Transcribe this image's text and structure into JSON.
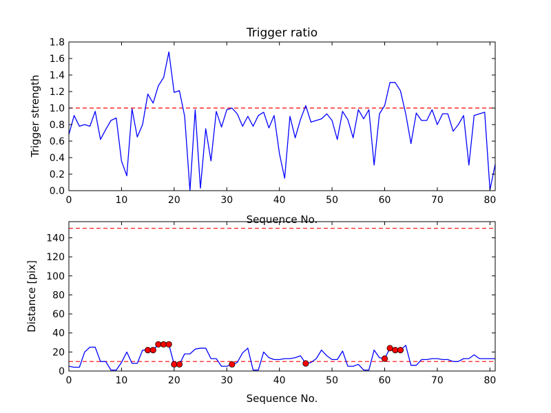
{
  "chart_data": [
    {
      "type": "line",
      "title": "Trigger ratio",
      "xlabel": "Sequence No.",
      "ylabel": "Trigger strength",
      "xlim": [
        0,
        81
      ],
      "ylim": [
        0,
        1.8
      ],
      "xticks": [
        0,
        10,
        20,
        30,
        40,
        50,
        60,
        70,
        80
      ],
      "yticks": [
        "0.0",
        "0.2",
        "0.4",
        "0.6",
        "0.8",
        "1.0",
        "1.2",
        "1.4",
        "1.6",
        "1.8"
      ],
      "grid": false,
      "series": [
        {
          "name": "trigger strength",
          "color": "#0000ff",
          "x": [
            0,
            1,
            2,
            3,
            4,
            5,
            6,
            7,
            8,
            9,
            10,
            11,
            12,
            13,
            14,
            15,
            16,
            17,
            18,
            19,
            20,
            21,
            22,
            23,
            24,
            25,
            26,
            27,
            28,
            29,
            30,
            31,
            32,
            33,
            34,
            35,
            36,
            37,
            38,
            39,
            40,
            41,
            42,
            43,
            44,
            45,
            46,
            47,
            48,
            49,
            50,
            51,
            52,
            53,
            54,
            55,
            56,
            57,
            58,
            59,
            60,
            61,
            62,
            63,
            64,
            65,
            66,
            67,
            68,
            69,
            70,
            71,
            72,
            73,
            74,
            75,
            76,
            77,
            78,
            79,
            80,
            81
          ],
          "values": [
            0.68,
            0.91,
            0.78,
            0.8,
            0.78,
            0.96,
            0.62,
            0.74,
            0.85,
            0.88,
            0.36,
            0.18,
            0.99,
            0.65,
            0.8,
            1.17,
            1.06,
            1.27,
            1.37,
            1.68,
            1.19,
            1.21,
            0.9,
            0.0,
            0.98,
            0.03,
            0.75,
            0.36,
            0.96,
            0.77,
            0.98,
            1.0,
            0.93,
            0.78,
            0.9,
            0.78,
            0.91,
            0.95,
            0.76,
            0.91,
            0.45,
            0.15,
            0.9,
            0.64,
            0.86,
            1.03,
            0.83,
            0.85,
            0.87,
            0.93,
            0.85,
            0.62,
            0.96,
            0.86,
            0.64,
            0.98,
            0.87,
            0.98,
            0.31,
            0.93,
            1.03,
            1.31,
            1.31,
            1.21,
            0.93,
            0.57,
            0.94,
            0.85,
            0.85,
            0.98,
            0.8,
            0.93,
            0.93,
            0.72,
            0.8,
            0.91,
            0.31,
            0.91,
            0.93,
            0.95,
            0.01,
            0.32
          ]
        }
      ],
      "threshold": {
        "value": 1.0,
        "color": "#ff0000",
        "style": "dashed"
      }
    },
    {
      "type": "line",
      "title": "",
      "xlabel": "Sequence No.",
      "ylabel": "Distance [pix]",
      "xlim": [
        0,
        81
      ],
      "ylim": [
        0,
        157
      ],
      "xticks": [
        0,
        10,
        20,
        30,
        40,
        50,
        60,
        70,
        80
      ],
      "yticks": [
        0,
        20,
        40,
        60,
        80,
        100,
        120,
        140
      ],
      "grid": false,
      "series": [
        {
          "name": "distance",
          "color": "#0000ff",
          "x": [
            0,
            1,
            2,
            3,
            4,
            5,
            6,
            7,
            8,
            9,
            10,
            11,
            12,
            13,
            14,
            15,
            16,
            17,
            18,
            19,
            20,
            21,
            22,
            23,
            24,
            25,
            26,
            27,
            28,
            29,
            30,
            31,
            32,
            33,
            34,
            35,
            36,
            37,
            38,
            39,
            40,
            41,
            42,
            43,
            44,
            45,
            46,
            47,
            48,
            49,
            50,
            51,
            52,
            53,
            54,
            55,
            56,
            57,
            58,
            59,
            60,
            61,
            62,
            63,
            64,
            65,
            66,
            67,
            68,
            69,
            70,
            71,
            72,
            73,
            74,
            75,
            76,
            77,
            78,
            79,
            80,
            81
          ],
          "values": [
            5,
            4,
            4,
            20,
            25,
            25,
            10,
            10,
            1,
            1,
            9,
            20,
            8,
            8,
            22,
            22,
            22,
            28,
            28,
            28,
            7,
            7,
            18,
            18,
            23,
            24,
            24,
            13,
            13,
            5,
            5,
            7,
            9,
            19,
            24,
            1,
            1,
            20,
            14,
            12,
            12,
            13,
            13,
            14,
            16,
            8,
            9,
            13,
            22,
            16,
            12,
            12,
            21,
            5,
            5,
            7,
            1,
            1,
            22,
            14,
            13,
            24,
            22,
            22,
            27,
            6,
            6,
            12,
            12,
            13,
            13,
            12,
            12,
            10,
            10,
            13,
            13,
            17,
            13,
            13,
            13,
            13
          ]
        },
        {
          "name": "flagged points",
          "color": "#ff0000",
          "marker": "circle",
          "x": [
            15,
            16,
            17,
            18,
            19,
            20,
            21,
            31,
            45,
            60,
            61,
            62,
            63
          ],
          "values": [
            22,
            22,
            28,
            28,
            28,
            7,
            7,
            7,
            8,
            13,
            24,
            22,
            22
          ]
        }
      ],
      "thresholds": [
        {
          "value": 150,
          "color": "#ff0000",
          "style": "dashed"
        },
        {
          "value": 10,
          "color": "#ff0000",
          "style": "dashed"
        }
      ]
    }
  ]
}
